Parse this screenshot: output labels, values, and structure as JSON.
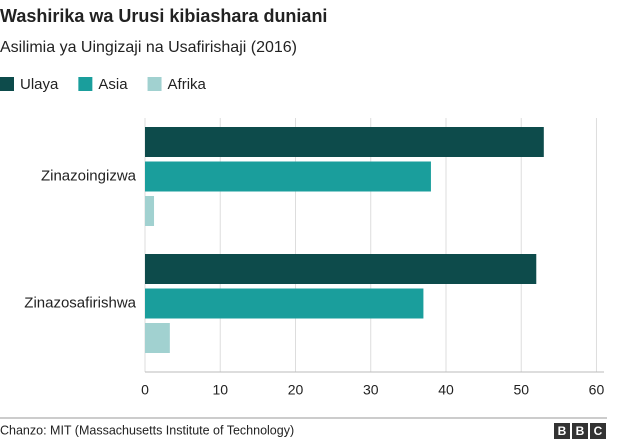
{
  "chart_data": {
    "type": "hbar",
    "title": "Washirika wa Urusi kibiashara duniani",
    "subtitle": "Asilimia ya Uingizaji na Usafirishaji (2016)",
    "categories": [
      "Zinazoingizwa",
      "Zinazosafirishwa"
    ],
    "series": [
      {
        "name": "Ulaya",
        "color": "#0d4b4b",
        "values": [
          53,
          52
        ]
      },
      {
        "name": "Asia",
        "color": "#1a9e9c",
        "values": [
          38,
          37
        ]
      },
      {
        "name": "Afrika",
        "color": "#a1d1d0",
        "values": [
          1.2,
          3.3
        ]
      }
    ],
    "xlim": [
      0,
      61
    ],
    "xticks": [
      0,
      10,
      20,
      30,
      40,
      50,
      60
    ],
    "grid": true,
    "source": "Chanzo: MIT (Massachusetts Institute of Technology)",
    "logo": [
      "B",
      "B",
      "C"
    ]
  }
}
